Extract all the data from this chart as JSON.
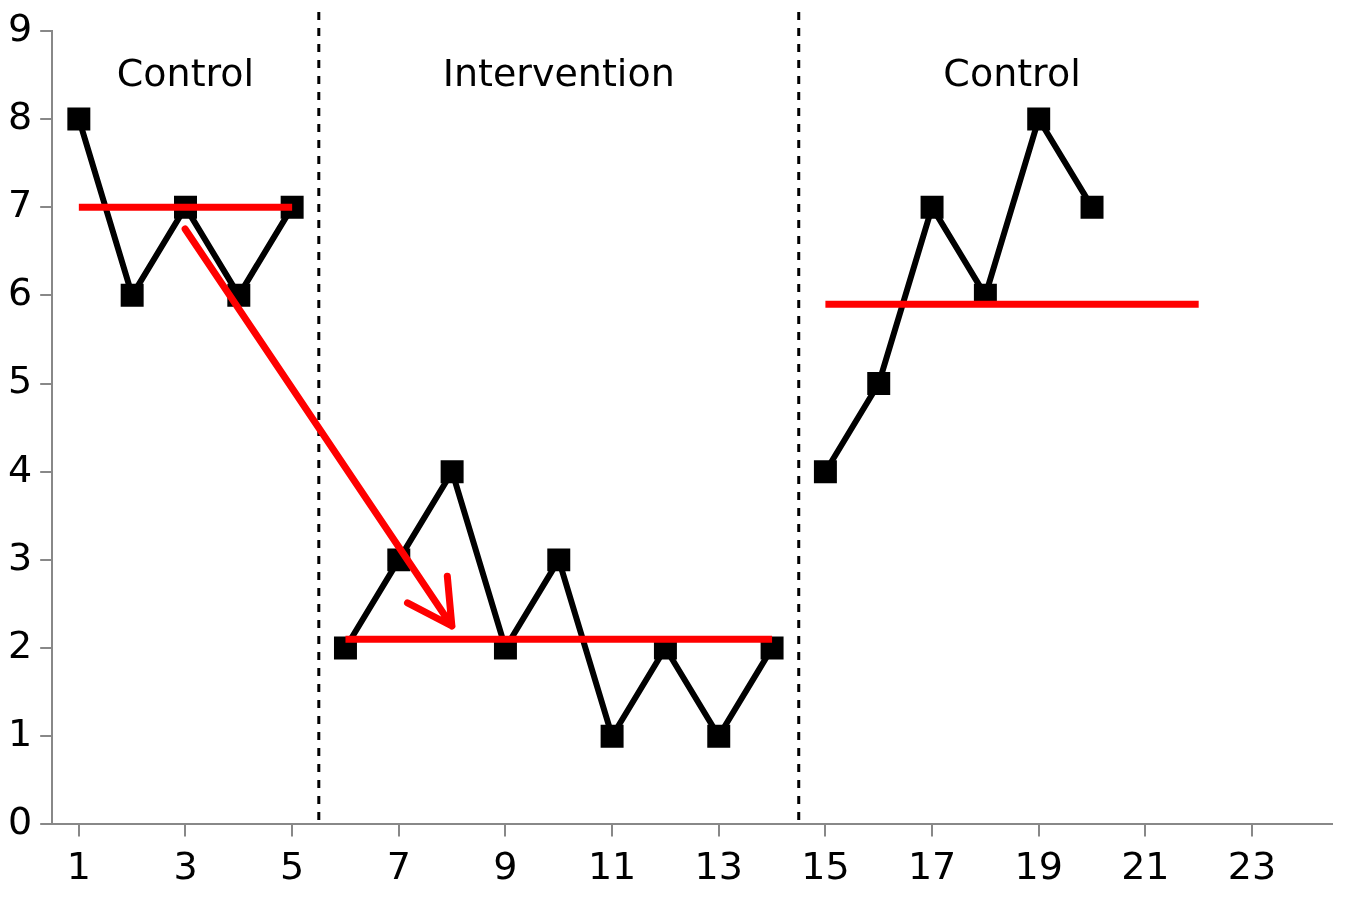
{
  "chart_data": {
    "type": "line",
    "xlim": [
      0.5,
      24.5
    ],
    "ylim": [
      0,
      9
    ],
    "yticks": [
      0,
      1,
      2,
      3,
      4,
      5,
      6,
      7,
      8,
      9
    ],
    "xticks": [
      1,
      3,
      5,
      7,
      9,
      11,
      13,
      15,
      17,
      19,
      21,
      23
    ],
    "grid": false,
    "legend": false,
    "marker": "square",
    "line_style": "solid",
    "series": [
      {
        "color": "#000000",
        "x": [
          1,
          2,
          3,
          4,
          5
        ],
        "values": [
          8,
          6,
          7,
          6,
          7
        ]
      },
      {
        "color": "#000000",
        "x": [
          6,
          7,
          8,
          9,
          10,
          11,
          12,
          13,
          14
        ],
        "values": [
          2,
          3,
          4,
          2,
          3,
          1,
          2,
          1,
          2
        ]
      },
      {
        "color": "#000000",
        "x": [
          15,
          16,
          17,
          18,
          19,
          20
        ],
        "values": [
          4,
          5,
          7,
          6,
          8,
          7
        ]
      },
      {
        "color": "#ff0000",
        "marker": "none",
        "x": [
          1,
          5
        ],
        "values": [
          7,
          7
        ]
      },
      {
        "color": "#ff0000",
        "marker": "none",
        "x": [
          6,
          14
        ],
        "values": [
          2.1,
          2.1
        ]
      },
      {
        "color": "#ff0000",
        "marker": "none",
        "x": [
          15,
          22
        ],
        "values": [
          5.9,
          5.9
        ]
      }
    ],
    "ref_lines": [
      {
        "axis": "x",
        "value": 5.5,
        "color": "#000000",
        "line_style": "dashed"
      },
      {
        "axis": "x",
        "value": 14.5,
        "color": "#000000",
        "line_style": "dashed"
      }
    ],
    "annotations": [
      "Control",
      "Intervention",
      "Control"
    ]
  }
}
